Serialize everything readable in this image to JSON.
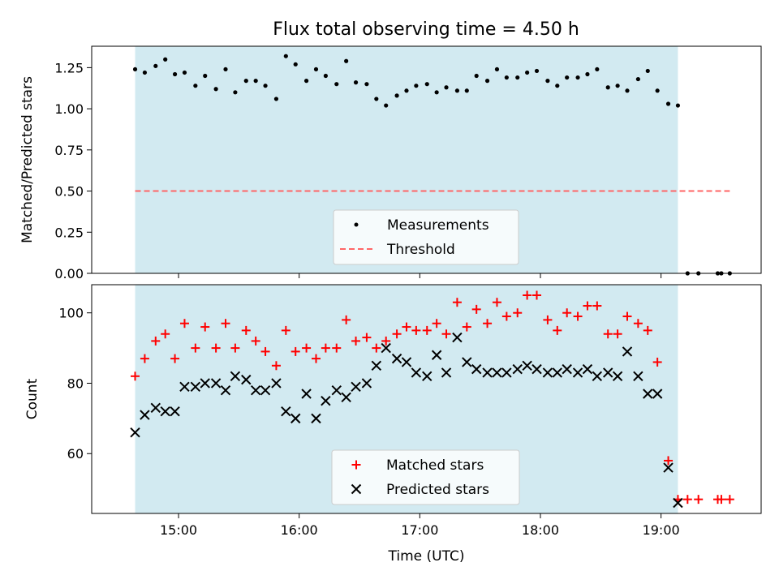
{
  "chart_data": {
    "title": "Flux total observing time = 4.50 h",
    "x_axis": {
      "label": "Time (UTC)",
      "ticks": [
        "15:00",
        "16:00",
        "17:00",
        "18:00",
        "19:00"
      ],
      "range_hours": [
        14.28,
        19.83
      ]
    },
    "observing_window_hours": [
      14.64,
      19.14
    ],
    "colors": {
      "window": "#add8e6",
      "measurements": "#000000",
      "threshold": "#ff6666",
      "matched": "#ff0000",
      "predicted": "#000000"
    },
    "panels": [
      {
        "type": "scatter",
        "ylabel": "Matched/Predicted stars",
        "ylim": [
          0,
          1.38
        ],
        "yticks": [
          "0.00",
          "0.25",
          "0.50",
          "0.75",
          "1.00",
          "1.25"
        ],
        "legend_position": "bottom-center",
        "threshold": {
          "name": "Threshold",
          "value": 0.5,
          "x_range": [
            14.64,
            19.57
          ]
        },
        "series": [
          {
            "name": "Measurements",
            "marker": "dot",
            "x": [
              14.64,
              14.72,
              14.81,
              14.89,
              14.97,
              15.05,
              15.14,
              15.22,
              15.31,
              15.39,
              15.47,
              15.56,
              15.64,
              15.72,
              15.81,
              15.89,
              15.97,
              16.06,
              16.14,
              16.22,
              16.31,
              16.39,
              16.47,
              16.56,
              16.64,
              16.72,
              16.81,
              16.89,
              16.97,
              17.06,
              17.14,
              17.22,
              17.31,
              17.39,
              17.47,
              17.56,
              17.64,
              17.72,
              17.81,
              17.89,
              17.97,
              18.06,
              18.14,
              18.22,
              18.31,
              18.39,
              18.47,
              18.56,
              18.64,
              18.72,
              18.81,
              18.89,
              18.97,
              19.06,
              19.14,
              19.22,
              19.31,
              19.47,
              19.5,
              19.57
            ],
            "y": [
              1.24,
              1.22,
              1.26,
              1.3,
              1.21,
              1.22,
              1.14,
              1.2,
              1.12,
              1.24,
              1.1,
              1.17,
              1.17,
              1.14,
              1.06,
              1.32,
              1.27,
              1.17,
              1.24,
              1.2,
              1.15,
              1.29,
              1.16,
              1.15,
              1.06,
              1.02,
              1.08,
              1.11,
              1.14,
              1.15,
              1.1,
              1.13,
              1.11,
              1.11,
              1.2,
              1.17,
              1.24,
              1.19,
              1.19,
              1.22,
              1.23,
              1.17,
              1.14,
              1.19,
              1.19,
              1.21,
              1.24,
              1.13,
              1.14,
              1.11,
              1.18,
              1.23,
              1.11,
              1.03,
              1.02,
              0.0,
              0.0,
              0.0,
              0.0,
              0.0
            ]
          }
        ]
      },
      {
        "type": "scatter",
        "ylabel": "Count",
        "ylim": [
          43,
          108
        ],
        "yticks": [
          "60",
          "80",
          "100"
        ],
        "legend_position": "bottom-center",
        "series": [
          {
            "name": "Matched stars",
            "marker": "plus",
            "x": [
              14.64,
              14.72,
              14.81,
              14.89,
              14.97,
              15.05,
              15.14,
              15.22,
              15.31,
              15.39,
              15.47,
              15.56,
              15.64,
              15.72,
              15.81,
              15.89,
              15.97,
              16.06,
              16.14,
              16.22,
              16.31,
              16.39,
              16.47,
              16.56,
              16.64,
              16.72,
              16.81,
              16.89,
              16.97,
              17.06,
              17.14,
              17.22,
              17.31,
              17.39,
              17.47,
              17.56,
              17.64,
              17.72,
              17.81,
              17.89,
              17.97,
              18.06,
              18.14,
              18.22,
              18.31,
              18.39,
              18.47,
              18.56,
              18.64,
              18.72,
              18.81,
              18.89,
              18.97,
              19.06,
              19.14,
              19.22,
              19.31,
              19.47,
              19.5,
              19.57
            ],
            "y": [
              82,
              87,
              92,
              94,
              87,
              97,
              90,
              96,
              90,
              97,
              90,
              95,
              92,
              89,
              85,
              95,
              89,
              90,
              87,
              90,
              90,
              98,
              92,
              93,
              90,
              92,
              94,
              96,
              95,
              95,
              97,
              94,
              103,
              96,
              101,
              97,
              103,
              99,
              100,
              105,
              105,
              98,
              95,
              100,
              99,
              102,
              102,
              94,
              94,
              99,
              97,
              95,
              86,
              58,
              47,
              47,
              47,
              47,
              47,
              47
            ]
          },
          {
            "name": "Predicted stars",
            "marker": "x",
            "x": [
              14.64,
              14.72,
              14.81,
              14.89,
              14.97,
              15.05,
              15.14,
              15.22,
              15.31,
              15.39,
              15.47,
              15.56,
              15.64,
              15.72,
              15.81,
              15.89,
              15.97,
              16.06,
              16.14,
              16.22,
              16.31,
              16.39,
              16.47,
              16.56,
              16.64,
              16.72,
              16.81,
              16.89,
              16.97,
              17.06,
              17.14,
              17.22,
              17.31,
              17.39,
              17.47,
              17.56,
              17.64,
              17.72,
              17.81,
              17.89,
              17.97,
              18.06,
              18.14,
              18.22,
              18.31,
              18.39,
              18.47,
              18.56,
              18.64,
              18.72,
              18.81,
              18.89,
              18.97,
              19.06,
              19.14
            ],
            "y": [
              66,
              71,
              73,
              72,
              72,
              79,
              79,
              80,
              80,
              78,
              82,
              81,
              78,
              78,
              80,
              72,
              70,
              77,
              70,
              75,
              78,
              76,
              79,
              80,
              85,
              90,
              87,
              86,
              83,
              82,
              88,
              83,
              93,
              86,
              84,
              83,
              83,
              83,
              84,
              85,
              84,
              83,
              83,
              84,
              83,
              84,
              82,
              83,
              82,
              89,
              82,
              77,
              77,
              56,
              46
            ]
          }
        ]
      }
    ]
  }
}
